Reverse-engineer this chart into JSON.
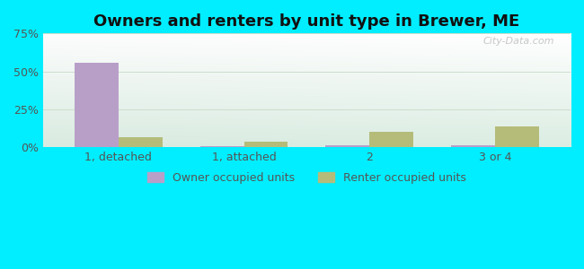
{
  "title": "Owners and renters by unit type in Brewer, ME",
  "categories": [
    "1, detached",
    "1, attached",
    "2",
    "3 or 4"
  ],
  "owner_values": [
    55.5,
    0.8,
    1.5,
    1.5
  ],
  "renter_values": [
    6.5,
    3.5,
    10.0,
    14.0
  ],
  "owner_color": "#b89fc8",
  "renter_color": "#b5bc7a",
  "ylim": [
    0,
    75
  ],
  "yticks": [
    0,
    25,
    50,
    75
  ],
  "ytick_labels": [
    "0%",
    "25%",
    "50%",
    "75%"
  ],
  "bar_width": 0.35,
  "background_outer": "#00eeff",
  "title_fontsize": 13,
  "tick_fontsize": 9,
  "legend_fontsize": 9,
  "watermark": "City-Data.com"
}
